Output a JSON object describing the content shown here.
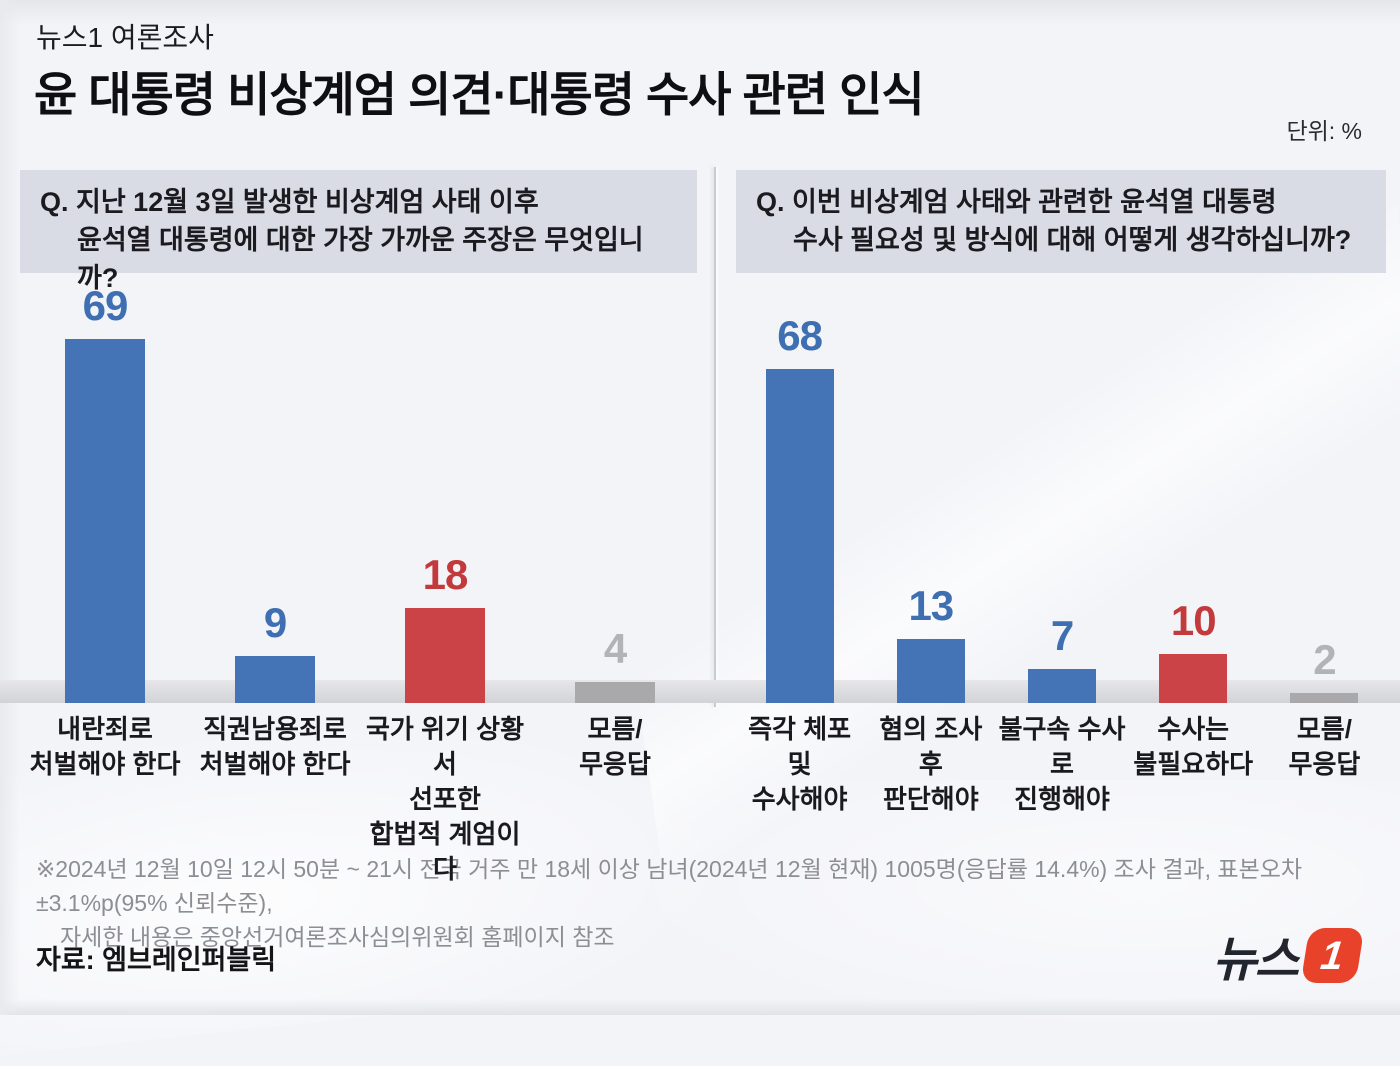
{
  "header": {
    "kicker": "뉴스1 여론조사",
    "title": "윤 대통령 비상계엄 의견·대통령 수사 관련 인식",
    "unit_label": "단위: %"
  },
  "chart_data": [
    {
      "type": "bar",
      "title": "비상계엄 사태 이후 윤석열 대통령에 대한 가장 가까운 주장",
      "question_line1": "Q. 지난 12월 3일 발생한 비상계엄 사태 이후",
      "question_line2": "윤석열 대통령에 대한 가장 가까운 주장은 무엇입니까?",
      "categories": [
        "내란죄로\n처벌해야 한다",
        "직권남용죄로\n처벌해야 한다",
        "국가 위기 상황서\n선포한\n합법적 계엄이다",
        "모름/\n무응답"
      ],
      "values": [
        69,
        9,
        18,
        4
      ],
      "bar_colors": [
        "#4474b6",
        "#4474b6",
        "#cb4247",
        "#a9a9ab"
      ],
      "value_colors": [
        "#3e6fb2",
        "#3e6fb2",
        "#c23a3c",
        "#b1b3b6"
      ],
      "xlabel": "",
      "ylabel": "",
      "unit": "%",
      "ylim": [
        0,
        80
      ],
      "grid": false,
      "legend": "none"
    },
    {
      "type": "bar",
      "title": "비상계엄 사태와 관련한 윤석열 대통령 수사 필요성 및 방식",
      "question_line1": "Q. 이번 비상계엄 사태와 관련한 윤석열 대통령",
      "question_line2": "수사 필요성 및 방식에 대해 어떻게 생각하십니까?",
      "categories": [
        "즉각 체포 및\n수사해야",
        "혐의 조사 후\n판단해야",
        "불구속 수사로\n진행해야",
        "수사는\n불필요하다",
        "모름/\n무응답"
      ],
      "values": [
        68,
        13,
        7,
        10,
        2
      ],
      "bar_colors": [
        "#4474b6",
        "#4474b6",
        "#4474b6",
        "#cb4247",
        "#a9a9ab"
      ],
      "value_colors": [
        "#3e6fb2",
        "#3e6fb2",
        "#3e6fb2",
        "#c23a3c",
        "#b1b3b6"
      ],
      "xlabel": "",
      "ylabel": "",
      "unit": "%",
      "ylim": [
        0,
        86
      ],
      "grid": false,
      "legend": "none"
    }
  ],
  "footnote": {
    "line1": "※2024년 12월 10일 12시 50분 ~ 21시 전국 거주 만 18세 이상 남녀(2024년 12월 현재) 1005명(응답률 14.4%) 조사 결과, 표본오차 ±3.1%p(95% 신뢰수준),",
    "line2": "자세한 내용은 중앙선거여론조사심의위원회 홈페이지 참조"
  },
  "source_label": "자료: 엠브레인퍼블릭",
  "logo": {
    "text": "뉴스",
    "badge": "1"
  },
  "colors": {
    "background": "#f3f4f8",
    "question_box_bg": "#d9dbe5",
    "bar_blue": "#4474b6",
    "bar_red": "#cb4247",
    "bar_gray": "#a9a9ab",
    "logo_badge": "#e8432a"
  }
}
